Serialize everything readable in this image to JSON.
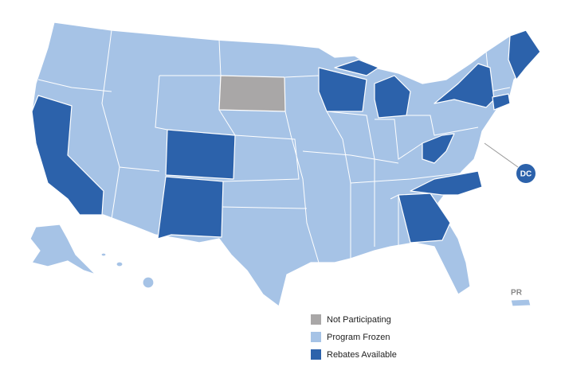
{
  "legend": [
    {
      "label": "Not Participating",
      "color": "#a9a7a7"
    },
    {
      "label": "Program Frozen",
      "color": "#a6c3e6"
    },
    {
      "label": "Rebates Available",
      "color": "#2c62ab"
    }
  ],
  "labels": {
    "dc": "DC",
    "pr": "PR"
  }
}
